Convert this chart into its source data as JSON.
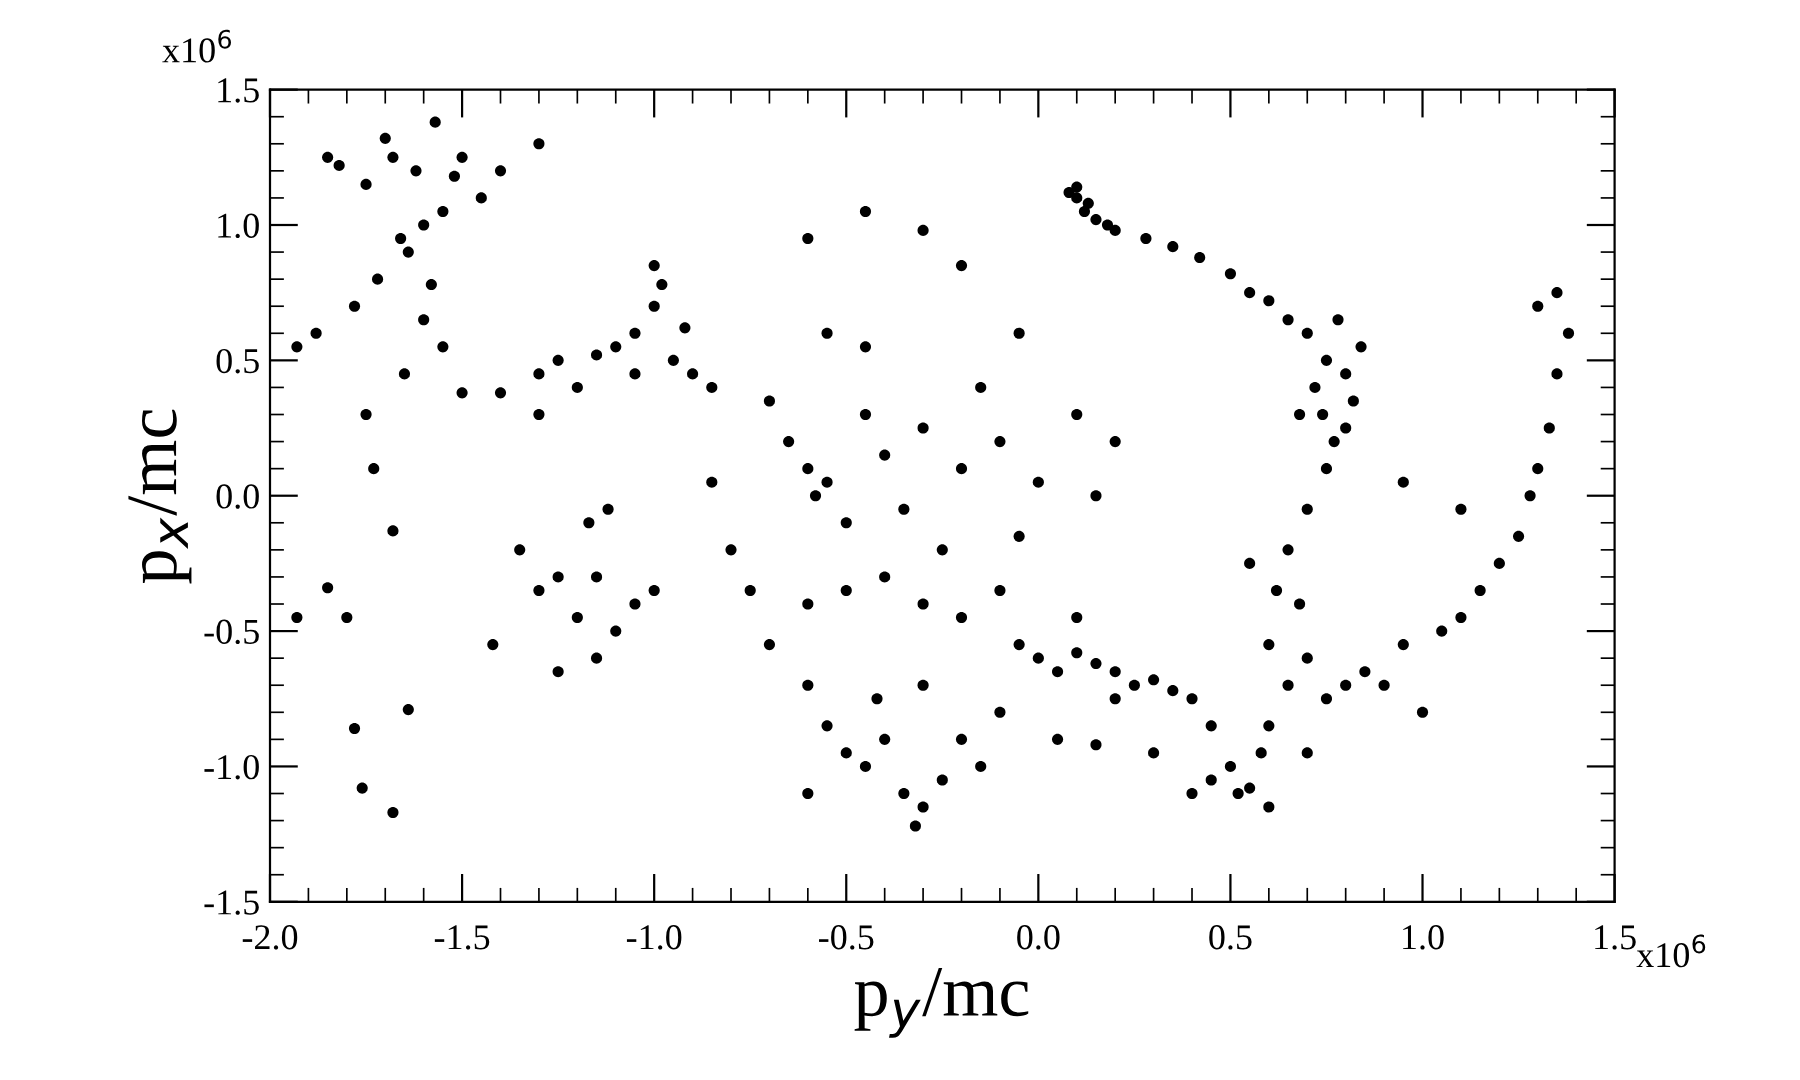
{
  "chart_data": {
    "type": "scatter",
    "xlabel": "p$_{y}$/mc",
    "ylabel": "p$_{x}$/mc",
    "annotations": [
      "x10$^{6}$",
      "x10$^{6}$"
    ],
    "xlim": [
      -2.0,
      1.5
    ],
    "ylim": [
      -1.5,
      1.5
    ],
    "xticks": [
      {
        "value": -2.0,
        "label": "-2.0"
      },
      {
        "value": -1.5,
        "label": "-1.5"
      },
      {
        "value": -1.0,
        "label": "-1.0"
      },
      {
        "value": -0.5,
        "label": "-0.5"
      },
      {
        "value": 0.0,
        "label": "0.0"
      },
      {
        "value": 0.5,
        "label": "0.5"
      },
      {
        "value": 1.0,
        "label": "1.0"
      },
      {
        "value": 1.5,
        "label": "1.5"
      }
    ],
    "yticks": [
      {
        "value": -1.5,
        "label": "-1.5"
      },
      {
        "value": -1.0,
        "label": "-1.0"
      },
      {
        "value": -0.5,
        "label": "-0.5"
      },
      {
        "value": 0.0,
        "label": "0.0"
      },
      {
        "value": 0.5,
        "label": "0.5"
      },
      {
        "value": 1.0,
        "label": "1.0"
      },
      {
        "value": 1.5,
        "label": "1.5"
      }
    ],
    "grid": false,
    "legend": false,
    "marker": "circle",
    "series": [
      {
        "color": "#000000",
        "x": [
          -1.93,
          -1.88,
          -1.85,
          -1.82,
          -1.78,
          -1.75,
          -1.72,
          -1.7,
          -1.68,
          -1.66,
          -1.64,
          -1.62,
          -1.6,
          -1.58,
          -1.55,
          -1.52,
          -1.5,
          -1.45,
          -1.4,
          -1.3,
          -1.57,
          -1.65,
          -1.75,
          -1.73,
          -1.68,
          -1.85,
          -1.93,
          -1.8,
          -1.78,
          -1.76,
          -1.68,
          -1.64,
          -1.6,
          -1.55,
          -1.5,
          -1.4,
          -1.3,
          -1.25,
          -1.2,
          -1.15,
          -1.1,
          -1.05,
          -1.0,
          -0.98,
          -0.95,
          -0.9,
          -0.85,
          -1.05,
          -1.3,
          -0.92,
          -1.0,
          -1.35,
          -1.3,
          -1.25,
          -1.2,
          -1.17,
          -1.15,
          -1.12,
          -1.1,
          -1.15,
          -1.05,
          -1.0,
          -1.42,
          -1.25,
          -0.85,
          -0.8,
          -0.75,
          -0.7,
          -0.65,
          -0.6,
          -0.58,
          -0.55,
          -0.5,
          -0.45,
          -0.4,
          -0.35,
          -0.3,
          -0.25,
          -0.2,
          -0.15,
          -0.1,
          -0.05,
          0.0,
          0.1,
          -0.6,
          -0.5,
          -0.4,
          -0.3,
          -0.2,
          -0.1,
          0.15,
          0.2,
          -0.7,
          -0.45,
          -0.6,
          -0.45,
          -0.3,
          -0.2,
          -0.05,
          -0.55,
          -0.6,
          -0.55,
          -0.5,
          -0.45,
          -0.4,
          -0.35,
          -0.3,
          -0.25,
          -0.2,
          -0.15,
          -0.1,
          -0.6,
          -0.42,
          -0.3,
          -0.32,
          -0.05,
          0.0,
          0.05,
          0.1,
          0.15,
          0.2,
          0.25,
          0.3,
          0.35,
          0.4,
          0.05,
          0.15,
          0.3,
          0.45,
          0.1,
          0.2,
          0.4,
          0.45,
          0.5,
          0.52,
          0.55,
          0.6,
          0.58,
          0.08,
          0.1,
          0.12,
          0.15,
          0.18,
          0.1,
          0.13,
          0.2,
          0.28,
          0.35,
          0.42,
          0.5,
          0.55,
          0.6,
          0.65,
          0.7,
          0.72,
          0.74,
          0.75,
          0.77,
          0.78,
          0.8,
          0.82,
          0.84,
          0.8,
          0.68,
          0.75,
          0.7,
          0.65,
          0.62,
          0.68,
          0.6,
          0.65,
          0.7,
          0.75,
          0.8,
          0.85,
          0.6,
          0.7,
          0.9,
          1.0,
          0.55,
          0.95,
          1.05,
          1.1,
          1.15,
          1.2,
          1.25,
          1.28,
          1.3,
          1.33,
          1.35,
          1.38,
          1.35,
          1.3,
          1.1,
          0.95
        ],
        "values": [
          0.55,
          0.6,
          1.25,
          1.22,
          0.7,
          1.15,
          0.8,
          1.32,
          1.25,
          0.95,
          0.9,
          1.2,
          1.0,
          0.78,
          1.05,
          1.18,
          1.25,
          1.1,
          1.2,
          1.3,
          1.38,
          0.45,
          0.3,
          0.1,
          -0.13,
          -0.34,
          -0.45,
          -0.45,
          -0.86,
          -1.08,
          -1.17,
          -0.79,
          0.65,
          0.55,
          0.38,
          0.38,
          0.45,
          0.5,
          0.4,
          0.52,
          0.55,
          0.6,
          0.7,
          0.78,
          0.5,
          0.45,
          0.4,
          0.45,
          0.3,
          0.62,
          0.85,
          -0.2,
          -0.35,
          -0.3,
          -0.45,
          -0.1,
          -0.3,
          -0.05,
          -0.5,
          -0.6,
          -0.4,
          -0.35,
          -0.55,
          -0.65,
          0.05,
          -0.2,
          -0.35,
          -0.55,
          0.2,
          0.1,
          0.0,
          0.05,
          -0.1,
          0.3,
          0.15,
          -0.05,
          0.25,
          -0.2,
          0.1,
          0.4,
          0.2,
          -0.15,
          0.05,
          0.3,
          -0.4,
          -0.35,
          -0.3,
          -0.4,
          -0.45,
          -0.35,
          0.0,
          0.2,
          0.35,
          0.55,
          0.95,
          1.05,
          0.98,
          0.85,
          0.6,
          0.6,
          -0.7,
          -0.85,
          -0.95,
          -1.0,
          -0.9,
          -1.1,
          -1.15,
          -1.05,
          -0.9,
          -1.0,
          -0.8,
          -1.1,
          -0.75,
          -0.7,
          -1.22,
          -0.55,
          -0.6,
          -0.65,
          -0.58,
          -0.62,
          -0.65,
          -0.7,
          -0.68,
          -0.72,
          -0.75,
          -0.9,
          -0.92,
          -0.95,
          -0.85,
          -0.45,
          -0.75,
          -1.1,
          -1.05,
          -1.0,
          -1.1,
          -1.08,
          -1.15,
          -0.95,
          1.12,
          1.1,
          1.05,
          1.02,
          1.0,
          1.14,
          1.08,
          0.98,
          0.95,
          0.92,
          0.88,
          0.82,
          0.75,
          0.72,
          0.65,
          0.6,
          0.4,
          0.3,
          0.5,
          0.2,
          0.65,
          0.45,
          0.35,
          0.55,
          0.25,
          0.3,
          0.1,
          -0.05,
          -0.2,
          -0.35,
          -0.4,
          -0.55,
          -0.7,
          -0.6,
          -0.75,
          -0.7,
          -0.65,
          -0.85,
          -0.95,
          -0.7,
          -0.8,
          -0.25,
          -0.55,
          -0.5,
          -0.45,
          -0.35,
          -0.25,
          -0.15,
          0.0,
          0.1,
          0.25,
          0.45,
          0.6,
          0.75,
          0.7,
          -0.05,
          0.05
        ]
      }
    ]
  }
}
